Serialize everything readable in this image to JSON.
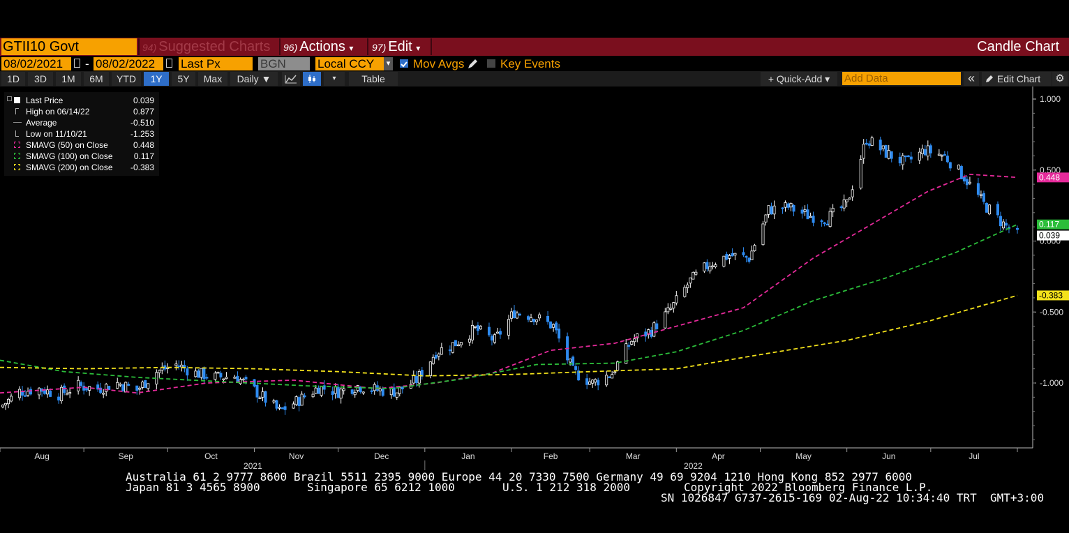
{
  "header": {
    "ticker": "GTII10 Govt",
    "suggested": {
      "num": "94)",
      "label": "Suggested Charts"
    },
    "actions": {
      "num": "96)",
      "label": "Actions",
      "caret": "▾"
    },
    "edit": {
      "num": "97)",
      "label": "Edit",
      "caret": "▾"
    },
    "chart_title": "Candle Chart"
  },
  "params": {
    "start_date": "08/02/2021",
    "dash": "-",
    "end_date": "08/02/2022",
    "field": "Last Px",
    "source": "BGN",
    "currency": "Local CCY",
    "currency_caret": "▾",
    "mov_avgs_label": "Mov Avgs",
    "mov_avgs_checked": true,
    "key_events_label": "Key Events",
    "key_events_checked": false
  },
  "toolbar": {
    "periods": [
      "1D",
      "3D",
      "1M",
      "6M",
      "YTD",
      "1Y",
      "5Y",
      "Max"
    ],
    "active_period": "1Y",
    "frequency": "Daily ▼",
    "table_label": "Table",
    "quick_add_label": "+ Quick-Add ▾",
    "add_data_placeholder": "Add Data",
    "collapse_icon": "«",
    "edit_chart_label": "Edit Chart"
  },
  "legend": {
    "rows": [
      {
        "label": "Last Price",
        "value": "0.039",
        "marker": "white-square"
      },
      {
        "label": "High on 06/14/22",
        "value": "0.877",
        "marker": "high-icon"
      },
      {
        "label": "Average",
        "value": "-0.510",
        "marker": "average-icon"
      },
      {
        "label": "Low on 11/10/21",
        "value": "-1.253",
        "marker": "low-icon"
      },
      {
        "label": "SMAVG (50)  on Close",
        "value": "0.448",
        "marker": "magenta-box"
      },
      {
        "label": "SMAVG (100)  on Close",
        "value": "0.117",
        "marker": "green-box"
      },
      {
        "label": "SMAVG (200)  on Close",
        "value": "-0.383",
        "marker": "yellow-box"
      }
    ]
  },
  "colors": {
    "accent": "#f7a100",
    "titlebar": "#7a0f1e",
    "up_candle": "#ffffff",
    "down_candle": "#2e8bf0",
    "sma50": "#e52a9a",
    "sma100": "#2bbd3a",
    "sma200": "#f3e21b"
  },
  "chart_data": {
    "type": "candlestick",
    "title": "",
    "y_ticks": [
      "1.000",
      "0.500",
      "0.000",
      "-0.500",
      "-1.000"
    ],
    "y_tick_values": [
      1.0,
      0.5,
      0.0,
      -0.5,
      -1.0
    ],
    "ylim": [
      -1.45,
      1.05
    ],
    "x_months": [
      "Aug",
      "Sep",
      "Oct",
      "Nov",
      "Dec",
      "Jan",
      "Feb",
      "Mar",
      "Apr",
      "May",
      "Jun",
      "Jul"
    ],
    "x_years": [
      "2021",
      "2022"
    ],
    "x_range": [
      "2021-08-02",
      "2022-08-02"
    ],
    "grid": false,
    "legend_position": "top-left",
    "last_price": {
      "label": "0.039",
      "value": 0.039
    },
    "close": [
      [
        "2021-08-02",
        -1.17
      ],
      [
        "2021-08-09",
        -1.06
      ],
      [
        "2021-08-16",
        -1.04
      ],
      [
        "2021-08-23",
        -1.08
      ],
      [
        "2021-08-30",
        -1.02
      ],
      [
        "2021-09-06",
        -1.04
      ],
      [
        "2021-09-13",
        -1.0
      ],
      [
        "2021-09-20",
        -1.05
      ],
      [
        "2021-09-27",
        -0.92
      ],
      [
        "2021-10-04",
        -0.87
      ],
      [
        "2021-10-11",
        -0.93
      ],
      [
        "2021-10-18",
        -0.96
      ],
      [
        "2021-10-25",
        -0.95
      ],
      [
        "2021-11-01",
        -1.05
      ],
      [
        "2021-11-10",
        -1.2
      ],
      [
        "2021-11-17",
        -1.12
      ],
      [
        "2021-11-24",
        -1.03
      ],
      [
        "2021-12-01",
        -1.06
      ],
      [
        "2021-12-08",
        -1.02
      ],
      [
        "2021-12-15",
        -1.05
      ],
      [
        "2021-12-22",
        -1.06
      ],
      [
        "2021-12-29",
        -0.98
      ],
      [
        "2022-01-05",
        -0.78
      ],
      [
        "2022-01-12",
        -0.72
      ],
      [
        "2022-01-19",
        -0.62
      ],
      [
        "2022-01-26",
        -0.7
      ],
      [
        "2022-02-02",
        -0.5
      ],
      [
        "2022-02-09",
        -0.53
      ],
      [
        "2022-02-16",
        -0.6
      ],
      [
        "2022-02-23",
        -0.92
      ],
      [
        "2022-03-02",
        -1.0
      ],
      [
        "2022-03-09",
        -0.93
      ],
      [
        "2022-03-16",
        -0.7
      ],
      [
        "2022-03-23",
        -0.63
      ],
      [
        "2022-03-30",
        -0.48
      ],
      [
        "2022-04-06",
        -0.28
      ],
      [
        "2022-04-13",
        -0.16
      ],
      [
        "2022-04-20",
        -0.1
      ],
      [
        "2022-04-27",
        -0.12
      ],
      [
        "2022-05-04",
        0.22
      ],
      [
        "2022-05-11",
        0.24
      ],
      [
        "2022-05-18",
        0.18
      ],
      [
        "2022-05-25",
        0.16
      ],
      [
        "2022-06-01",
        0.26
      ],
      [
        "2022-06-08",
        0.72
      ],
      [
        "2022-06-15",
        0.62
      ],
      [
        "2022-06-22",
        0.55
      ],
      [
        "2022-06-29",
        0.64
      ],
      [
        "2022-07-06",
        0.6
      ],
      [
        "2022-07-13",
        0.45
      ],
      [
        "2022-07-20",
        0.26
      ],
      [
        "2022-07-27",
        0.12
      ],
      [
        "2022-08-01",
        0.039
      ]
    ],
    "series": [
      {
        "name": "SMAVG (50)  on Close",
        "color": "#e52a9a",
        "last": 0.448,
        "values": [
          [
            "2021-08-02",
            -1.07
          ],
          [
            "2021-09-01",
            -1.03
          ],
          [
            "2021-09-20",
            -1.07
          ],
          [
            "2021-10-15",
            -1.0
          ],
          [
            "2021-11-15",
            -0.98
          ],
          [
            "2021-12-15",
            -1.04
          ],
          [
            "2022-01-05",
            -1.0
          ],
          [
            "2022-01-25",
            -0.93
          ],
          [
            "2022-02-15",
            -0.77
          ],
          [
            "2022-03-10",
            -0.72
          ],
          [
            "2022-04-01",
            -0.6
          ],
          [
            "2022-04-25",
            -0.47
          ],
          [
            "2022-05-20",
            -0.12
          ],
          [
            "2022-06-10",
            0.12
          ],
          [
            "2022-06-30",
            0.35
          ],
          [
            "2022-07-15",
            0.47
          ],
          [
            "2022-08-01",
            0.448
          ]
        ]
      },
      {
        "name": "SMAVG (100)  on Close",
        "color": "#2bbd3a",
        "last": 0.117,
        "values": [
          [
            "2021-08-02",
            -0.84
          ],
          [
            "2021-08-25",
            -0.92
          ],
          [
            "2021-09-20",
            -0.96
          ],
          [
            "2021-10-20",
            -0.99
          ],
          [
            "2021-11-20",
            -1.02
          ],
          [
            "2021-12-20",
            -1.04
          ],
          [
            "2022-01-15",
            -0.97
          ],
          [
            "2022-02-10",
            -0.87
          ],
          [
            "2022-03-10",
            -0.86
          ],
          [
            "2022-04-01",
            -0.78
          ],
          [
            "2022-04-25",
            -0.63
          ],
          [
            "2022-05-20",
            -0.42
          ],
          [
            "2022-06-15",
            -0.26
          ],
          [
            "2022-07-10",
            -0.08
          ],
          [
            "2022-08-01",
            0.117
          ]
        ]
      },
      {
        "name": "SMAVG (200)  on Close",
        "color": "#f3e21b",
        "last": -0.383,
        "values": [
          [
            "2021-08-02",
            -0.89
          ],
          [
            "2021-09-01",
            -0.9
          ],
          [
            "2021-10-01",
            -0.89
          ],
          [
            "2021-11-01",
            -0.9
          ],
          [
            "2021-12-01",
            -0.92
          ],
          [
            "2022-01-01",
            -0.95
          ],
          [
            "2022-02-01",
            -0.94
          ],
          [
            "2022-03-01",
            -0.92
          ],
          [
            "2022-04-01",
            -0.9
          ],
          [
            "2022-05-01",
            -0.8
          ],
          [
            "2022-06-01",
            -0.7
          ],
          [
            "2022-07-01",
            -0.56
          ],
          [
            "2022-08-01",
            -0.383
          ]
        ]
      }
    ]
  },
  "footer": {
    "line1": "Australia 61 2 9777 8600 Brazil 5511 2395 9000 Europe 44 20 7330 7500 Germany 49 69 9204 1210 Hong Kong 852 2977 6000",
    "line2a": "Japan 81 3 4565 8900",
    "line2b": "Singapore 65 6212 1000",
    "line2c": "U.S. 1 212 318 2000",
    "line2d": "Copyright 2022 Bloomberg Finance L.P.",
    "line3": "SN 1026847 G737-2615-169 02-Aug-22 10:34:40 TRT  GMT+3:00"
  }
}
